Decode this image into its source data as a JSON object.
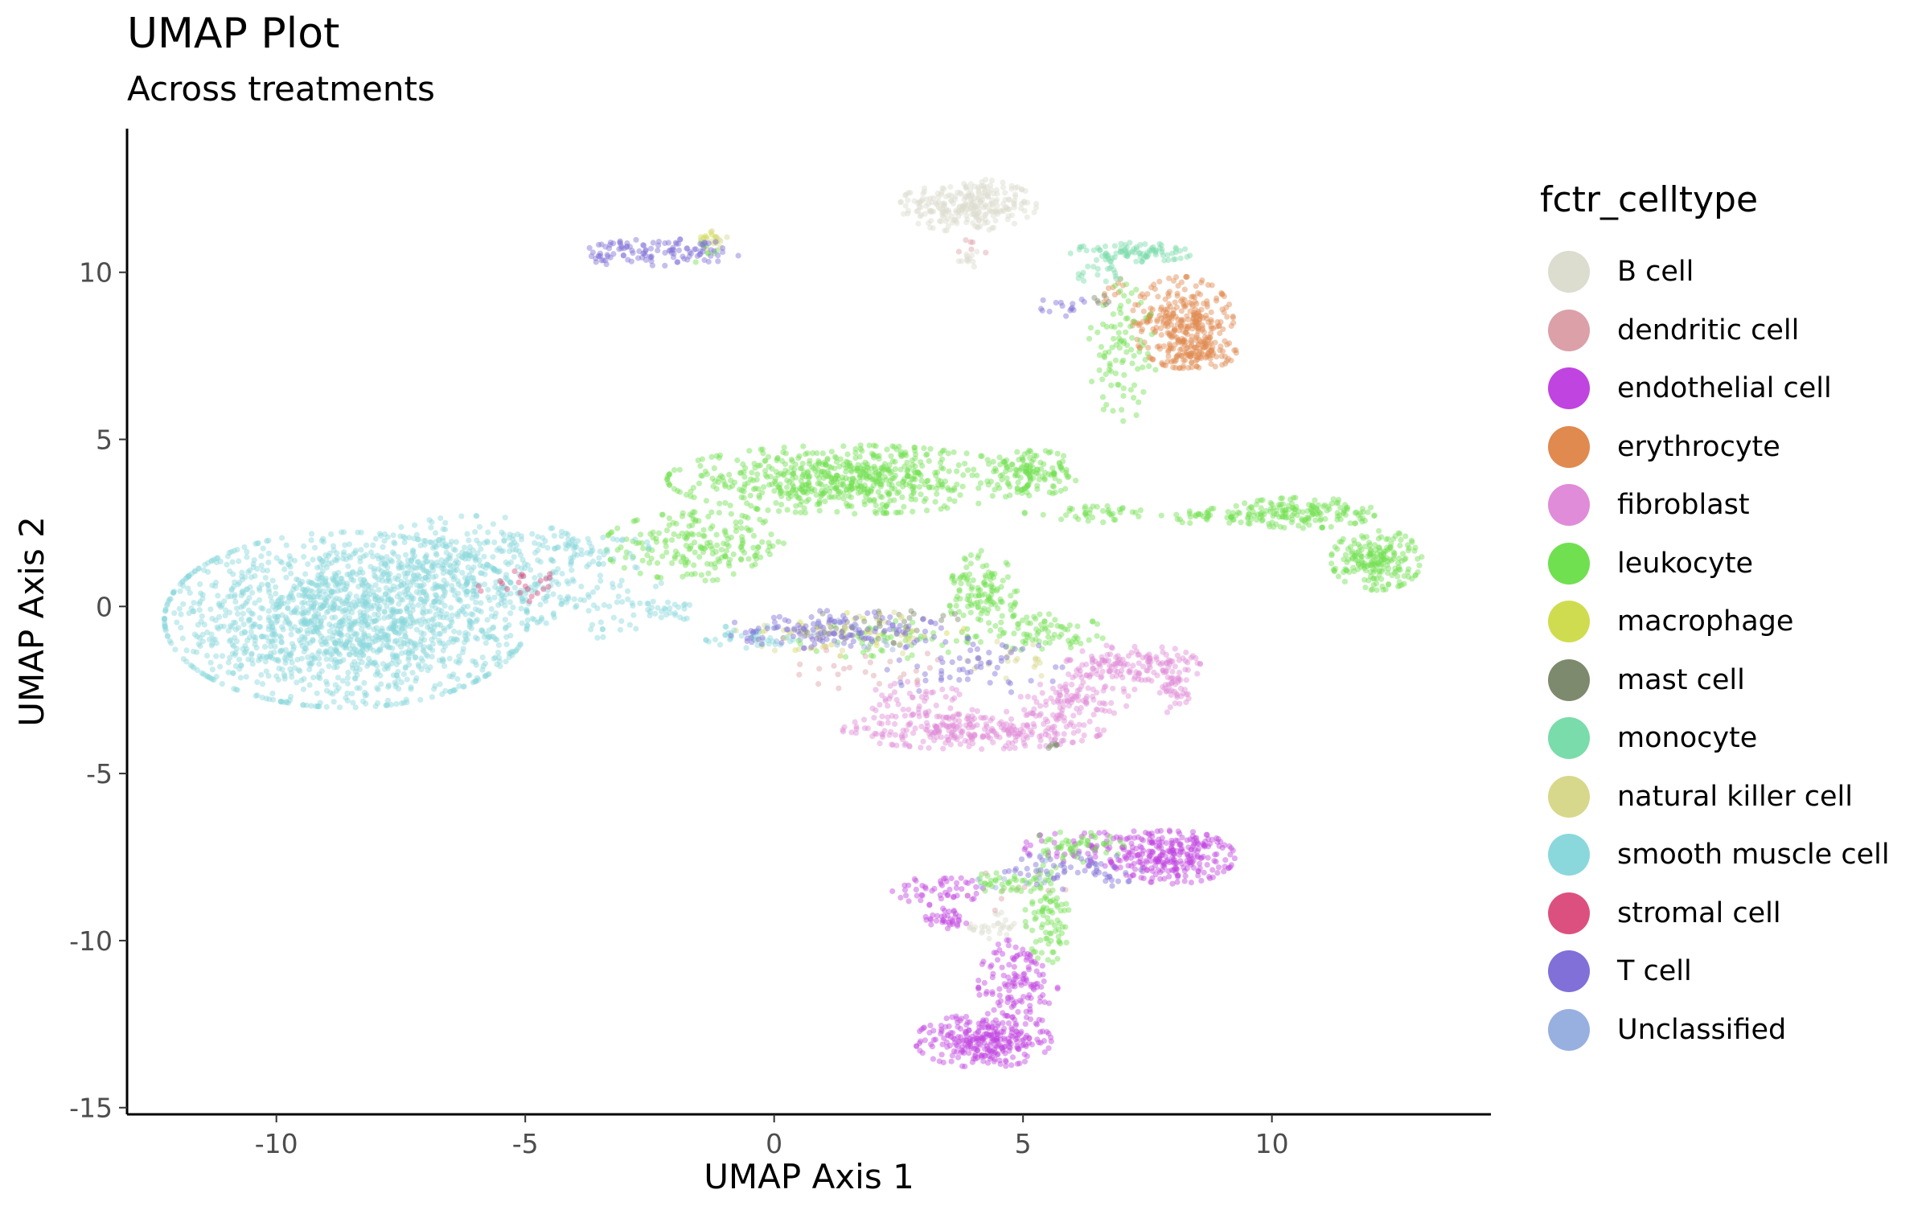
{
  "chart_data": {
    "type": "scatter",
    "title": "UMAP Plot",
    "subtitle": "Across treatments",
    "xlabel": "UMAP Axis 1",
    "ylabel": "UMAP Axis 2",
    "xlim": [
      -13,
      14.4
    ],
    "ylim": [
      -15.2,
      14.3
    ],
    "xticks": [
      -10,
      -5,
      0,
      5,
      10
    ],
    "yticks": [
      -15,
      -10,
      -5,
      0,
      5,
      10
    ],
    "xtick_labels": [
      "-10",
      "-5",
      "0",
      "5",
      "10"
    ],
    "ytick_labels": [
      "-15",
      "-10",
      "-5",
      "0",
      "5",
      "10"
    ],
    "grid": false,
    "legend_position": "right",
    "legend_title": "fctr_celltype",
    "point_alpha": 0.45,
    "series": [
      {
        "name": "B cell",
        "color": "#DCDCCF",
        "regions": [
          {
            "cx": 3.9,
            "cy": 12.0,
            "rx": 1.2,
            "ry": 0.7,
            "n": 260
          },
          {
            "cx": 3.9,
            "cy": 10.4,
            "rx": 0.2,
            "ry": 0.4,
            "n": 12
          },
          {
            "cx": 4.5,
            "cy": -9.6,
            "rx": 0.5,
            "ry": 0.4,
            "n": 30
          }
        ]
      },
      {
        "name": "dendritic cell",
        "color": "#DCA0A8",
        "regions": [
          {
            "cx": 2.0,
            "cy": -1.8,
            "rx": 2.0,
            "ry": 0.6,
            "n": 25
          },
          {
            "cx": 5.0,
            "cy": -8.5,
            "rx": 1.0,
            "ry": 0.6,
            "n": 10
          },
          {
            "cx": 4.0,
            "cy": 10.8,
            "rx": 0.3,
            "ry": 0.3,
            "n": 6
          }
        ]
      },
      {
        "name": "endothelial cell",
        "color": "#C044E0",
        "regions": [
          {
            "cx": 8.0,
            "cy": -7.5,
            "rx": 1.1,
            "ry": 0.7,
            "n": 260
          },
          {
            "cx": 6.5,
            "cy": -7.2,
            "rx": 1.3,
            "ry": 0.5,
            "n": 70
          },
          {
            "cx": 4.2,
            "cy": -13.0,
            "rx": 1.2,
            "ry": 0.7,
            "n": 280
          },
          {
            "cx": 4.9,
            "cy": -11.3,
            "rx": 0.7,
            "ry": 1.2,
            "n": 130
          },
          {
            "cx": 3.4,
            "cy": -8.5,
            "rx": 0.9,
            "ry": 0.4,
            "n": 50
          },
          {
            "cx": 3.5,
            "cy": -9.3,
            "rx": 0.4,
            "ry": 0.3,
            "n": 35
          }
        ]
      },
      {
        "name": "erythrocyte",
        "color": "#E08A50",
        "regions": [
          {
            "cx": 8.2,
            "cy": 8.5,
            "rx": 0.9,
            "ry": 1.2,
            "n": 300
          },
          {
            "cx": 8.6,
            "cy": 7.6,
            "rx": 0.6,
            "ry": 0.4,
            "n": 80
          },
          {
            "cx": 6.8,
            "cy": 9.4,
            "rx": 0.3,
            "ry": 0.4,
            "n": 10
          }
        ]
      },
      {
        "name": "fibroblast",
        "color": "#E08CD8",
        "regions": [
          {
            "cx": 4.0,
            "cy": -3.7,
            "rx": 2.3,
            "ry": 0.5,
            "n": 280
          },
          {
            "cx": 7.2,
            "cy": -1.8,
            "rx": 1.2,
            "ry": 0.6,
            "n": 160
          },
          {
            "cx": 6.0,
            "cy": -2.8,
            "rx": 1.0,
            "ry": 0.5,
            "n": 90
          },
          {
            "cx": 8.0,
            "cy": -2.5,
            "rx": 0.4,
            "ry": 0.6,
            "n": 40
          },
          {
            "cx": 3.0,
            "cy": -2.8,
            "rx": 1.0,
            "ry": 0.5,
            "n": 50
          }
        ]
      },
      {
        "name": "leukocyte",
        "color": "#70E050",
        "regions": [
          {
            "cx": 1.5,
            "cy": 3.8,
            "rx": 3.2,
            "ry": 0.9,
            "n": 650
          },
          {
            "cx": 5.2,
            "cy": 4.0,
            "rx": 0.8,
            "ry": 0.6,
            "n": 110
          },
          {
            "cx": -1.5,
            "cy": 1.8,
            "rx": 1.7,
            "ry": 0.9,
            "n": 200
          },
          {
            "cx": 6.4,
            "cy": 2.8,
            "rx": 1.2,
            "ry": 0.25,
            "n": 40
          },
          {
            "cx": 10.6,
            "cy": 2.8,
            "rx": 1.3,
            "ry": 0.4,
            "n": 160
          },
          {
            "cx": 12.1,
            "cy": 1.4,
            "rx": 0.8,
            "ry": 0.8,
            "n": 200
          },
          {
            "cx": 8.8,
            "cy": 2.7,
            "rx": 0.9,
            "ry": 0.2,
            "n": 40
          },
          {
            "cx": 4.2,
            "cy": 0.3,
            "rx": 0.6,
            "ry": 1.2,
            "n": 130
          },
          {
            "cx": 5.5,
            "cy": -0.8,
            "rx": 1.0,
            "ry": 0.5,
            "n": 70
          },
          {
            "cx": 7.0,
            "cy": 7.6,
            "rx": 0.6,
            "ry": 1.8,
            "n": 90
          },
          {
            "cx": 2.2,
            "cy": -1.0,
            "rx": 1.5,
            "ry": 0.5,
            "n": 50
          },
          {
            "cx": 6.0,
            "cy": -7.2,
            "rx": 0.9,
            "ry": 0.4,
            "n": 50
          },
          {
            "cx": 5.5,
            "cy": -9.2,
            "rx": 0.4,
            "ry": 1.3,
            "n": 90
          },
          {
            "cx": 4.7,
            "cy": -8.3,
            "rx": 0.6,
            "ry": 0.4,
            "n": 35
          },
          {
            "cx": -1.4,
            "cy": 10.6,
            "rx": 0.3,
            "ry": 0.3,
            "n": 10
          }
        ]
      },
      {
        "name": "macrophage",
        "color": "#D0DC50",
        "regions": [
          {
            "cx": 1.8,
            "cy": -0.8,
            "rx": 1.8,
            "ry": 0.6,
            "n": 25
          },
          {
            "cx": -1.3,
            "cy": 11.0,
            "rx": 0.2,
            "ry": 0.2,
            "n": 8
          }
        ]
      },
      {
        "name": "mast cell",
        "color": "#7E8A6E",
        "regions": [
          {
            "cx": 2.0,
            "cy": -0.6,
            "rx": 2.0,
            "ry": 0.5,
            "n": 40
          },
          {
            "cx": 5.6,
            "cy": -4.1,
            "rx": 0.2,
            "ry": 0.2,
            "n": 6
          },
          {
            "cx": 6.6,
            "cy": 9.2,
            "rx": 0.2,
            "ry": 0.2,
            "n": 6
          }
        ]
      },
      {
        "name": "monocyte",
        "color": "#7ADCAA",
        "regions": [
          {
            "cx": 7.2,
            "cy": 10.6,
            "rx": 1.1,
            "ry": 0.25,
            "n": 90
          },
          {
            "cx": 6.6,
            "cy": 10.0,
            "rx": 0.5,
            "ry": 0.3,
            "n": 20
          }
        ]
      },
      {
        "name": "natural killer cell",
        "color": "#D8D88C",
        "regions": [
          {
            "cx": -1.2,
            "cy": 11.0,
            "rx": 0.3,
            "ry": 0.3,
            "n": 15
          },
          {
            "cx": 1.5,
            "cy": -0.8,
            "rx": 2.0,
            "ry": 0.6,
            "n": 50
          },
          {
            "cx": 5.0,
            "cy": -1.5,
            "rx": 1.0,
            "ry": 0.6,
            "n": 20
          }
        ]
      },
      {
        "name": "smooth muscle cell",
        "color": "#8AD8DC",
        "regions": [
          {
            "cx": -8.6,
            "cy": -0.4,
            "rx": 3.2,
            "ry": 2.3,
            "n": 1600
          },
          {
            "cx": -6.0,
            "cy": 1.0,
            "rx": 2.2,
            "ry": 1.5,
            "n": 320
          },
          {
            "cx": -4.0,
            "cy": 1.8,
            "rx": 1.3,
            "ry": 0.5,
            "n": 70
          },
          {
            "cx": -3.5,
            "cy": 0.2,
            "rx": 1.2,
            "ry": 1.0,
            "n": 60
          },
          {
            "cx": -2.2,
            "cy": -0.1,
            "rx": 0.6,
            "ry": 0.3,
            "n": 25
          },
          {
            "cx": -0.5,
            "cy": -0.9,
            "rx": 0.8,
            "ry": 0.3,
            "n": 40
          }
        ]
      },
      {
        "name": "stromal cell",
        "color": "#DC5080",
        "regions": [
          {
            "cx": -5.1,
            "cy": 0.6,
            "rx": 0.9,
            "ry": 0.4,
            "n": 22
          }
        ]
      },
      {
        "name": "T cell",
        "color": "#8070D8",
        "regions": [
          {
            "cx": -2.2,
            "cy": 10.6,
            "rx": 1.4,
            "ry": 0.35,
            "n": 100
          },
          {
            "cx": -3.4,
            "cy": 10.4,
            "rx": 0.3,
            "ry": 0.15,
            "n": 15
          },
          {
            "cx": 1.2,
            "cy": -0.7,
            "rx": 1.9,
            "ry": 0.5,
            "n": 130
          },
          {
            "cx": 4.0,
            "cy": -1.8,
            "rx": 1.6,
            "ry": 0.8,
            "n": 60
          },
          {
            "cx": 6.0,
            "cy": -7.9,
            "rx": 1.2,
            "ry": 0.5,
            "n": 60
          },
          {
            "cx": 5.8,
            "cy": 9.0,
            "rx": 0.4,
            "ry": 0.3,
            "n": 15
          }
        ]
      },
      {
        "name": "Unclassified",
        "color": "#98B0E0",
        "regions": [
          {
            "cx": 1.5,
            "cy": -0.8,
            "rx": 1.5,
            "ry": 0.5,
            "n": 12
          },
          {
            "cx": 5.0,
            "cy": -8.0,
            "rx": 1.0,
            "ry": 0.5,
            "n": 10
          }
        ]
      }
    ]
  }
}
